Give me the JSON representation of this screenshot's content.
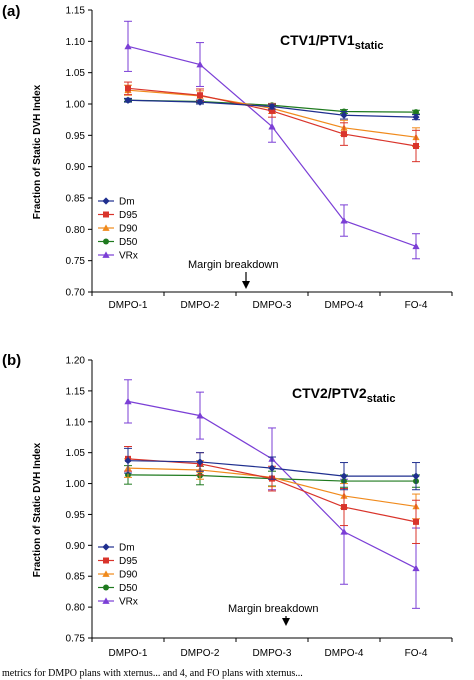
{
  "caption": "metrics for DMPO plans with xternus... and 4, and FO plans with xternus...",
  "colors": {
    "Dm": "#1f2f8f",
    "D95": "#d9342b",
    "D90": "#f08a1c",
    "D50": "#1f7a1f",
    "VRx": "#7b3fd6"
  },
  "chart_data": [
    {
      "type": "line",
      "panel_label": "(a)",
      "title": "CTV1/PTV1",
      "title_sub": "static",
      "ylabel": "Fraction of Static DVH Index",
      "xlabel": "",
      "categories": [
        "DMPO-1",
        "DMPO-2",
        "DMPO-3",
        "DMPO-4",
        "FO-4"
      ],
      "ylim": [
        0.7,
        1.15
      ],
      "yticks": [
        "0.70",
        "0.75",
        "0.80",
        "0.85",
        "0.90",
        "0.95",
        "1.00",
        "1.05",
        "1.10",
        "1.15"
      ],
      "legend_position": "center-left",
      "annotation": "Margin breakdown",
      "series": [
        {
          "name": "Dm",
          "marker": "diamond",
          "values": [
            1.006,
            1.003,
            0.996,
            0.982,
            0.979
          ],
          "err": [
            0.003,
            0.003,
            0.004,
            0.006,
            0.004
          ]
        },
        {
          "name": "D95",
          "marker": "square",
          "values": [
            1.025,
            1.014,
            0.989,
            0.952,
            0.933
          ],
          "err": [
            0.01,
            0.01,
            0.01,
            0.018,
            0.025
          ]
        },
        {
          "name": "D90",
          "marker": "triangle",
          "values": [
            1.022,
            1.013,
            0.993,
            0.962,
            0.947
          ],
          "err": [
            0.008,
            0.008,
            0.008,
            0.012,
            0.015
          ]
        },
        {
          "name": "D50",
          "marker": "circle",
          "values": [
            1.006,
            1.004,
            0.998,
            0.988,
            0.987
          ],
          "err": [
            0.002,
            0.002,
            0.002,
            0.003,
            0.003
          ]
        },
        {
          "name": "VRx",
          "marker": "triangle",
          "values": [
            1.092,
            1.063,
            0.964,
            0.814,
            0.773
          ],
          "err": [
            0.04,
            0.035,
            0.025,
            0.025,
            0.02
          ]
        }
      ]
    },
    {
      "type": "line",
      "panel_label": "(b)",
      "title": "CTV2/PTV2",
      "title_sub": "static",
      "ylabel": "Fraction of Static DVH Index",
      "xlabel": "",
      "categories": [
        "DMPO-1",
        "DMPO-2",
        "DMPO-3",
        "DMPO-4",
        "FO-4"
      ],
      "ylim": [
        0.75,
        1.2
      ],
      "yticks": [
        "0.75",
        "0.80",
        "0.85",
        "0.90",
        "0.95",
        "1.00",
        "1.05",
        "1.10",
        "1.15",
        "1.20"
      ],
      "legend_position": "bottom-left",
      "annotation": "Margin breakdown",
      "series": [
        {
          "name": "Dm",
          "marker": "diamond",
          "values": [
            1.037,
            1.035,
            1.025,
            1.012,
            1.012
          ],
          "err": [
            0.02,
            0.015,
            0.018,
            0.022,
            0.022
          ]
        },
        {
          "name": "D95",
          "marker": "square",
          "values": [
            1.04,
            1.032,
            1.008,
            0.962,
            0.938
          ],
          "err": [
            0.02,
            0.018,
            0.02,
            0.03,
            0.035
          ]
        },
        {
          "name": "D90",
          "marker": "triangle",
          "values": [
            1.025,
            1.022,
            1.01,
            0.98,
            0.963
          ],
          "err": [
            0.015,
            0.015,
            0.015,
            0.02,
            0.02
          ]
        },
        {
          "name": "D50",
          "marker": "circle",
          "values": [
            1.014,
            1.013,
            1.008,
            1.004,
            1.004
          ],
          "err": [
            0.015,
            0.015,
            0.012,
            0.01,
            0.01
          ]
        },
        {
          "name": "VRx",
          "marker": "triangle",
          "values": [
            1.133,
            1.11,
            1.04,
            0.922,
            0.863
          ],
          "err": [
            0.035,
            0.038,
            0.05,
            0.085,
            0.065
          ]
        }
      ]
    }
  ]
}
